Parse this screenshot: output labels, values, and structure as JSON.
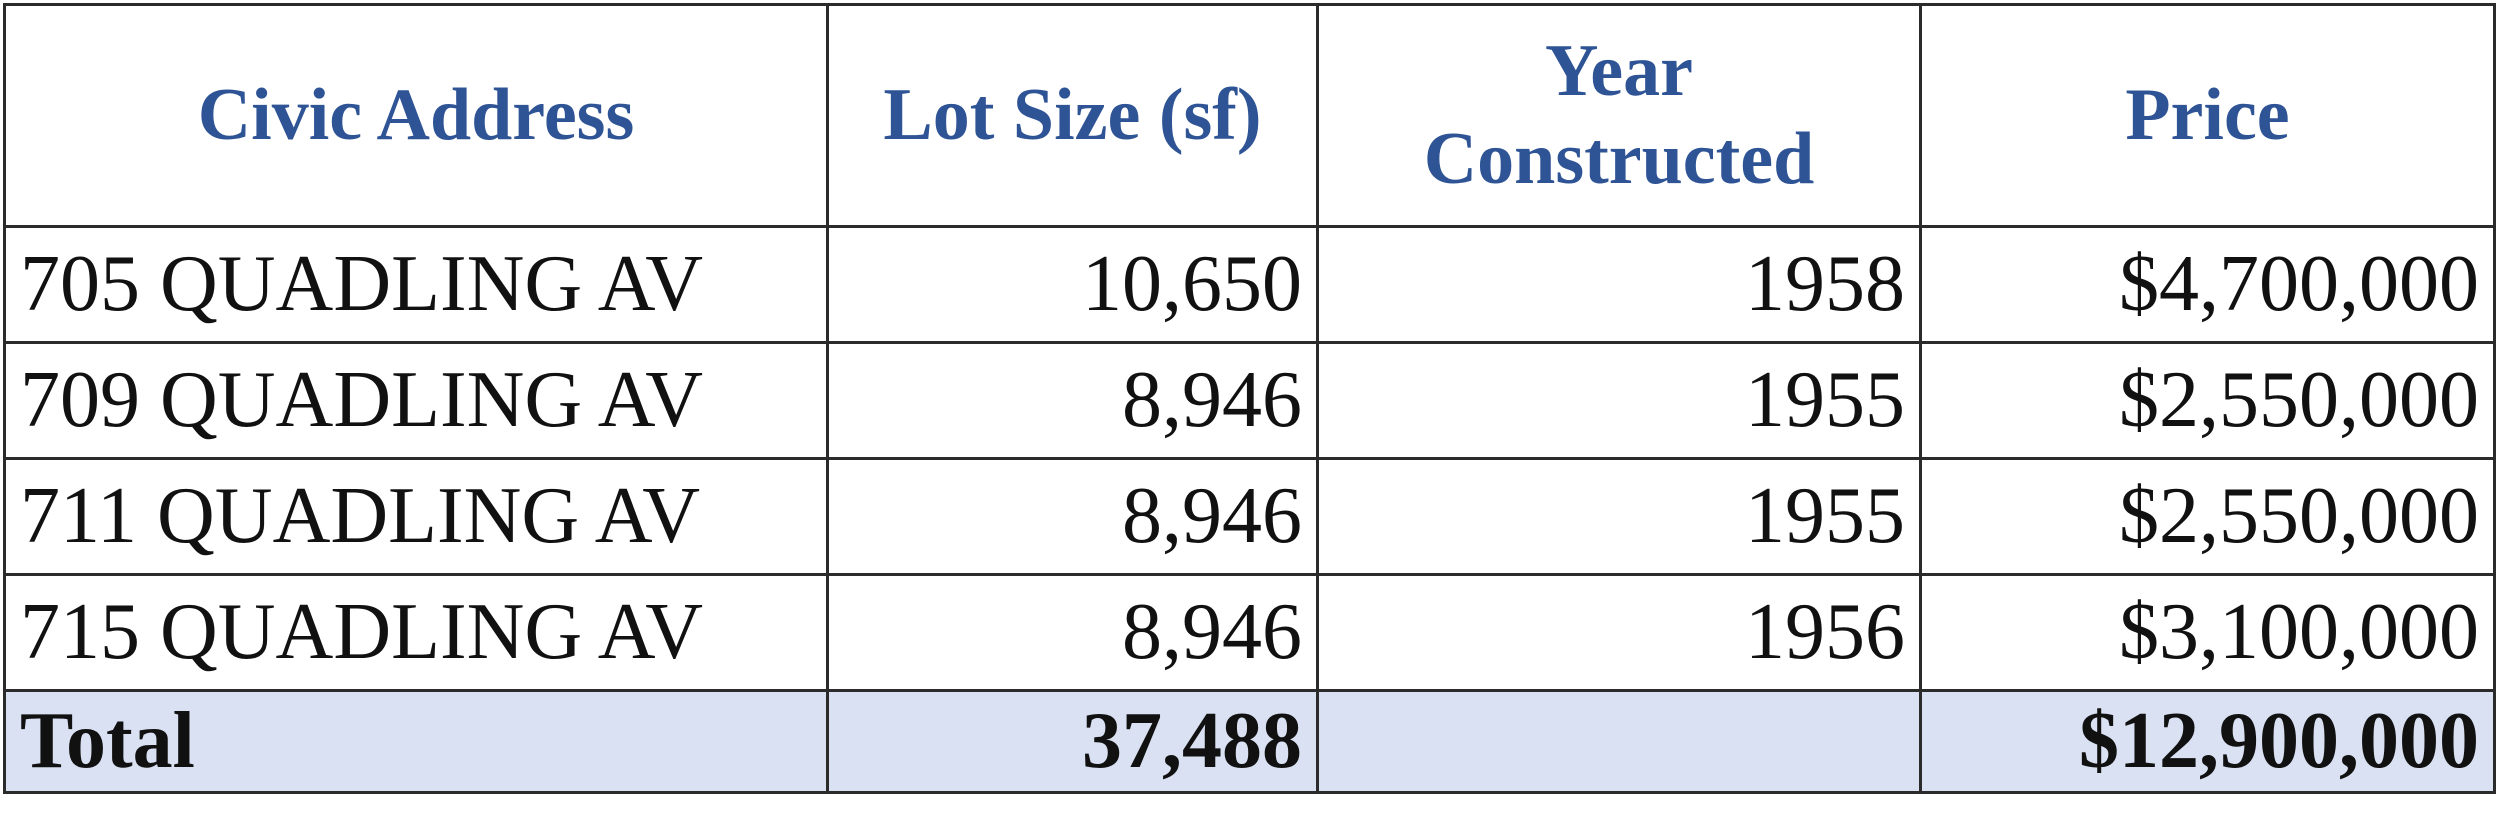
{
  "table": {
    "headers": {
      "address": "Civic Address",
      "lot_size": "Lot Size (sf)",
      "year_line1": "Year",
      "year_line2": "Constructed",
      "price": "Price"
    },
    "rows": [
      {
        "address": "705 QUADLING AV",
        "lot_size": "10,650",
        "year": "1958",
        "price": "$4,700,000"
      },
      {
        "address": "709 QUADLING AV",
        "lot_size": "8,946",
        "year": "1955",
        "price": "$2,550,000"
      },
      {
        "address": "711 QUADLING AV",
        "lot_size": "8,946",
        "year": "1955",
        "price": "$2,550,000"
      },
      {
        "address": "715 QUADLING AV",
        "lot_size": "8,946",
        "year": "1956",
        "price": "$3,100,000"
      }
    ],
    "total": {
      "label": "Total",
      "lot_size": "37,488",
      "year": "",
      "price": "$12,900,000"
    }
  },
  "colors": {
    "header_text": "#2f5496",
    "total_fill": "#d9e1f2",
    "grid": "#2b2b2b"
  }
}
